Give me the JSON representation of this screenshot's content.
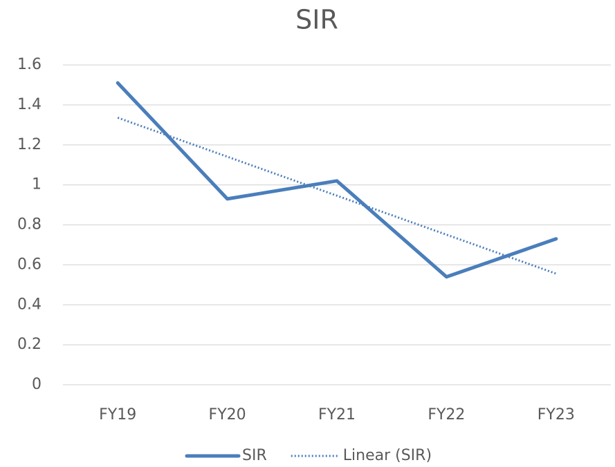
{
  "chart_data": {
    "type": "line",
    "title": "SIR",
    "categories": [
      "FY19",
      "FY20",
      "FY21",
      "FY22",
      "FY23"
    ],
    "series": [
      {
        "name": "SIR",
        "color": "#4a7ebb",
        "style": "solid",
        "values": [
          1.51,
          0.93,
          1.02,
          0.54,
          0.73
        ]
      },
      {
        "name": "Linear (SIR)",
        "color": "#4a7ebb",
        "style": "dotted",
        "values": [
          1.336,
          1.141,
          0.946,
          0.751,
          0.556
        ]
      }
    ],
    "ylim": [
      0,
      1.6
    ],
    "yticks": [
      0,
      0.2,
      0.4,
      0.6,
      0.8,
      1,
      1.2,
      1.4,
      1.6
    ],
    "grid": true,
    "legend": "bottom"
  }
}
